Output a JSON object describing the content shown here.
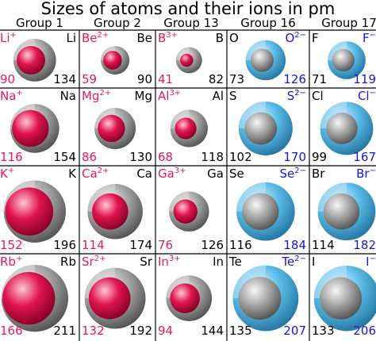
{
  "title": "Sizes of atoms and their ions in pm",
  "groups": [
    "Group 1",
    "Group 2",
    "Group 13",
    "Group 16",
    "Group 17"
  ],
  "colors": {
    "cation_label": "#e6195a",
    "anion_label": "#1515e0",
    "cation_sphere": "#e0144e",
    "anion_sphere": "#5bbde8",
    "atom_sphere": "#a8a8a8",
    "grid": "#000000"
  },
  "rows": [
    {
      "cells": [
        {
          "ion": "Li",
          "charge": "+",
          "atom": "Li",
          "ion_radius": 90,
          "atom_radius": 134
        },
        {
          "ion": "Be",
          "charge": "2+",
          "atom": "Be",
          "ion_radius": 59,
          "atom_radius": 90
        },
        {
          "ion": "B",
          "charge": "3+",
          "atom": "B",
          "ion_radius": 41,
          "atom_radius": 82
        },
        {
          "ion": "O",
          "charge": "2−",
          "atom": "O",
          "ion_radius": 126,
          "atom_radius": 73
        },
        {
          "ion": "F",
          "charge": "−",
          "atom": "F",
          "ion_radius": 119,
          "atom_radius": 71
        }
      ]
    },
    {
      "cells": [
        {
          "ion": "Na",
          "charge": "+",
          "atom": "Na",
          "ion_radius": 116,
          "atom_radius": 154
        },
        {
          "ion": "Mg",
          "charge": "2+",
          "atom": "Mg",
          "ion_radius": 86,
          "atom_radius": 130
        },
        {
          "ion": "Al",
          "charge": "3+",
          "atom": "Al",
          "ion_radius": 68,
          "atom_radius": 118
        },
        {
          "ion": "S",
          "charge": "2−",
          "atom": "S",
          "ion_radius": 170,
          "atom_radius": 102
        },
        {
          "ion": "Cl",
          "charge": "−",
          "atom": "Cl",
          "ion_radius": 167,
          "atom_radius": 99
        }
      ]
    },
    {
      "cells": [
        {
          "ion": "K",
          "charge": "+",
          "atom": "K",
          "ion_radius": 152,
          "atom_radius": 196
        },
        {
          "ion": "Ca",
          "charge": "2+",
          "atom": "Ca",
          "ion_radius": 114,
          "atom_radius": 174
        },
        {
          "ion": "Ga",
          "charge": "3+",
          "atom": "Ga",
          "ion_radius": 76,
          "atom_radius": 126
        },
        {
          "ion": "Se",
          "charge": "2−",
          "atom": "Se",
          "ion_radius": 184,
          "atom_radius": 116
        },
        {
          "ion": "Br",
          "charge": "−",
          "atom": "Br",
          "ion_radius": 182,
          "atom_radius": 114
        }
      ]
    },
    {
      "cells": [
        {
          "ion": "Rb",
          "charge": "+",
          "atom": "Rb",
          "ion_radius": 166,
          "atom_radius": 211
        },
        {
          "ion": "Sr",
          "charge": "2+",
          "atom": "Sr",
          "ion_radius": 132,
          "atom_radius": 192
        },
        {
          "ion": "In",
          "charge": "3+",
          "atom": "In",
          "ion_radius": 94,
          "atom_radius": 144
        },
        {
          "ion": "Te",
          "charge": "2−",
          "atom": "Te",
          "ion_radius": 207,
          "atom_radius": 135
        },
        {
          "ion": "I",
          "charge": "−",
          "atom": "I",
          "ion_radius": 206,
          "atom_radius": 133
        }
      ]
    }
  ]
}
